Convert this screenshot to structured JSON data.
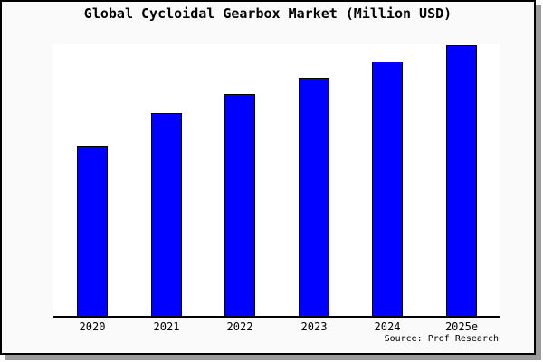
{
  "title": "Global Cycloidal Gearbox Market (Million USD)",
  "source_note": "Source: Prof Research",
  "colors": {
    "bar_fill": "#0000ff",
    "bar_border": "#000000",
    "frame_border": "#000000",
    "frame_shadow": "#9a9a9a",
    "figure_background": "#fafafa",
    "plot_background": "#ffffff",
    "text": "#000000"
  },
  "chart_data": {
    "type": "bar",
    "title": "Global Cycloidal Gearbox Market (Million USD)",
    "categories": [
      "2020",
      "2021",
      "2022",
      "2023",
      "2024",
      "2025e"
    ],
    "values": [
      63,
      75,
      82,
      88,
      94,
      100
    ],
    "value_scale_note": "no y-axis labels or gridlines visible; values estimated from bar heights relative to 2025e = 100",
    "xlabel": "",
    "ylabel": "",
    "ylim": [
      0,
      101
    ],
    "grid": false,
    "legend": false,
    "y_axis_visible": false,
    "source_note": "Source: Prof Research"
  }
}
